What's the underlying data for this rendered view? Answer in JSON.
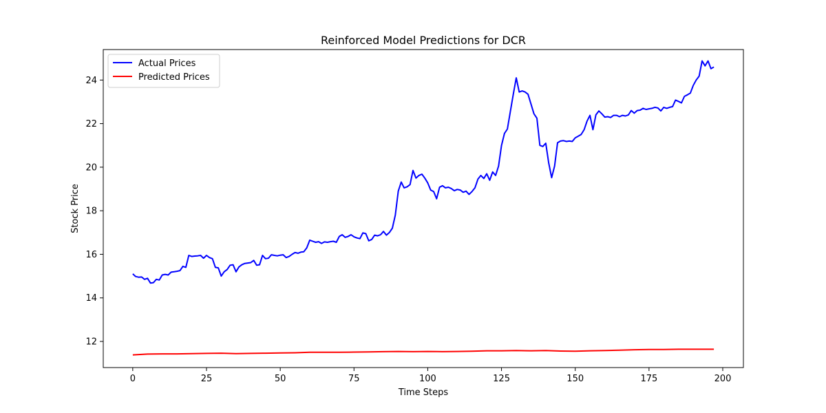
{
  "chart_data": {
    "type": "line",
    "title": "Reinforced Model Predictions for DCR",
    "xlabel": "Time Steps",
    "ylabel": "Stock Price",
    "xlim": [
      -10,
      207
    ],
    "ylim": [
      10.8,
      25.4
    ],
    "xticks": [
      0,
      25,
      50,
      75,
      100,
      125,
      150,
      175,
      200
    ],
    "yticks": [
      12,
      14,
      16,
      18,
      20,
      22,
      24
    ],
    "grid": false,
    "legend": "top-left",
    "series": [
      {
        "name": "Actual Prices",
        "color": "#0000ff",
        "points": [
          [
            0,
            15.1
          ],
          [
            1,
            14.98
          ],
          [
            2,
            14.95
          ],
          [
            3,
            14.96
          ],
          [
            4,
            14.85
          ],
          [
            5,
            14.9
          ],
          [
            6,
            14.68
          ],
          [
            7,
            14.7
          ],
          [
            8,
            14.85
          ],
          [
            9,
            14.82
          ],
          [
            10,
            15.05
          ],
          [
            11,
            15.08
          ],
          [
            12,
            15.05
          ],
          [
            13,
            15.18
          ],
          [
            14,
            15.2
          ],
          [
            15,
            15.22
          ],
          [
            16,
            15.25
          ],
          [
            17,
            15.45
          ],
          [
            18,
            15.4
          ],
          [
            19,
            15.95
          ],
          [
            20,
            15.9
          ],
          [
            21,
            15.92
          ],
          [
            22,
            15.93
          ],
          [
            23,
            15.95
          ],
          [
            24,
            15.82
          ],
          [
            25,
            15.95
          ],
          [
            26,
            15.85
          ],
          [
            27,
            15.8
          ],
          [
            28,
            15.4
          ],
          [
            29,
            15.38
          ],
          [
            30,
            15.0
          ],
          [
            31,
            15.2
          ],
          [
            32,
            15.3
          ],
          [
            33,
            15.5
          ],
          [
            34,
            15.52
          ],
          [
            35,
            15.2
          ],
          [
            36,
            15.42
          ],
          [
            37,
            15.52
          ],
          [
            38,
            15.58
          ],
          [
            39,
            15.6
          ],
          [
            40,
            15.62
          ],
          [
            41,
            15.72
          ],
          [
            42,
            15.5
          ],
          [
            43,
            15.52
          ],
          [
            44,
            15.95
          ],
          [
            45,
            15.8
          ],
          [
            46,
            15.82
          ],
          [
            47,
            15.98
          ],
          [
            48,
            15.95
          ],
          [
            49,
            15.93
          ],
          [
            50,
            15.96
          ],
          [
            51,
            15.98
          ],
          [
            52,
            15.85
          ],
          [
            53,
            15.9
          ],
          [
            54,
            16.0
          ],
          [
            55,
            16.08
          ],
          [
            56,
            16.05
          ],
          [
            57,
            16.1
          ],
          [
            58,
            16.12
          ],
          [
            59,
            16.3
          ],
          [
            60,
            16.65
          ],
          [
            61,
            16.6
          ],
          [
            62,
            16.55
          ],
          [
            63,
            16.58
          ],
          [
            64,
            16.5
          ],
          [
            65,
            16.57
          ],
          [
            66,
            16.55
          ],
          [
            67,
            16.58
          ],
          [
            68,
            16.6
          ],
          [
            69,
            16.55
          ],
          [
            70,
            16.82
          ],
          [
            71,
            16.9
          ],
          [
            72,
            16.78
          ],
          [
            73,
            16.82
          ],
          [
            74,
            16.9
          ],
          [
            75,
            16.8
          ],
          [
            76,
            16.75
          ],
          [
            77,
            16.72
          ],
          [
            78,
            16.98
          ],
          [
            79,
            16.95
          ],
          [
            80,
            16.62
          ],
          [
            81,
            16.68
          ],
          [
            82,
            16.88
          ],
          [
            83,
            16.85
          ],
          [
            84,
            16.9
          ],
          [
            85,
            17.05
          ],
          [
            86,
            16.88
          ],
          [
            87,
            17.0
          ],
          [
            88,
            17.2
          ],
          [
            89,
            17.8
          ],
          [
            90,
            18.9
          ],
          [
            91,
            19.32
          ],
          [
            92,
            19.05
          ],
          [
            93,
            19.1
          ],
          [
            94,
            19.2
          ],
          [
            95,
            19.85
          ],
          [
            96,
            19.5
          ],
          [
            97,
            19.62
          ],
          [
            98,
            19.68
          ],
          [
            99,
            19.5
          ],
          [
            100,
            19.28
          ],
          [
            101,
            18.95
          ],
          [
            102,
            18.88
          ],
          [
            103,
            18.55
          ],
          [
            104,
            19.08
          ],
          [
            105,
            19.15
          ],
          [
            106,
            19.05
          ],
          [
            107,
            19.08
          ],
          [
            108,
            19.02
          ],
          [
            109,
            18.92
          ],
          [
            110,
            18.98
          ],
          [
            111,
            18.95
          ],
          [
            112,
            18.85
          ],
          [
            113,
            18.9
          ],
          [
            114,
            18.75
          ],
          [
            115,
            18.88
          ],
          [
            116,
            19.05
          ],
          [
            117,
            19.45
          ],
          [
            118,
            19.62
          ],
          [
            119,
            19.48
          ],
          [
            120,
            19.7
          ],
          [
            121,
            19.4
          ],
          [
            122,
            19.78
          ],
          [
            123,
            19.62
          ],
          [
            124,
            20.05
          ],
          [
            125,
            21.0
          ],
          [
            126,
            21.55
          ],
          [
            127,
            21.75
          ],
          [
            128,
            22.55
          ],
          [
            129,
            23.35
          ],
          [
            130,
            24.1
          ],
          [
            131,
            23.45
          ],
          [
            132,
            23.5
          ],
          [
            133,
            23.45
          ],
          [
            134,
            23.35
          ],
          [
            135,
            22.9
          ],
          [
            136,
            22.45
          ],
          [
            137,
            22.25
          ],
          [
            138,
            21.0
          ],
          [
            139,
            20.95
          ],
          [
            140,
            21.1
          ],
          [
            141,
            20.2
          ],
          [
            142,
            19.52
          ],
          [
            143,
            20.05
          ],
          [
            144,
            21.12
          ],
          [
            145,
            21.2
          ],
          [
            146,
            21.22
          ],
          [
            147,
            21.18
          ],
          [
            148,
            21.2
          ],
          [
            149,
            21.18
          ],
          [
            150,
            21.35
          ],
          [
            151,
            21.42
          ],
          [
            152,
            21.5
          ],
          [
            153,
            21.72
          ],
          [
            154,
            22.12
          ],
          [
            155,
            22.38
          ],
          [
            156,
            21.72
          ],
          [
            157,
            22.4
          ],
          [
            158,
            22.58
          ],
          [
            159,
            22.45
          ],
          [
            160,
            22.3
          ],
          [
            161,
            22.32
          ],
          [
            162,
            22.28
          ],
          [
            163,
            22.38
          ],
          [
            164,
            22.38
          ],
          [
            165,
            22.32
          ],
          [
            166,
            22.38
          ],
          [
            167,
            22.35
          ],
          [
            168,
            22.4
          ],
          [
            169,
            22.6
          ],
          [
            170,
            22.48
          ],
          [
            171,
            22.6
          ],
          [
            172,
            22.62
          ],
          [
            173,
            22.7
          ],
          [
            174,
            22.65
          ],
          [
            175,
            22.68
          ],
          [
            176,
            22.7
          ],
          [
            177,
            22.75
          ],
          [
            178,
            22.72
          ],
          [
            179,
            22.58
          ],
          [
            180,
            22.75
          ],
          [
            181,
            22.7
          ],
          [
            182,
            22.75
          ],
          [
            183,
            22.78
          ],
          [
            184,
            23.08
          ],
          [
            185,
            23.02
          ],
          [
            186,
            22.95
          ],
          [
            187,
            23.25
          ],
          [
            188,
            23.32
          ],
          [
            189,
            23.4
          ],
          [
            190,
            23.75
          ],
          [
            191,
            24.0
          ],
          [
            192,
            24.18
          ],
          [
            193,
            24.88
          ],
          [
            194,
            24.65
          ],
          [
            195,
            24.88
          ],
          [
            196,
            24.52
          ],
          [
            197,
            24.6
          ]
        ]
      },
      {
        "name": "Predicted Prices",
        "color": "#ff0000",
        "points": [
          [
            0,
            11.38
          ],
          [
            5,
            11.42
          ],
          [
            10,
            11.43
          ],
          [
            15,
            11.43
          ],
          [
            20,
            11.44
          ],
          [
            25,
            11.45
          ],
          [
            30,
            11.46
          ],
          [
            35,
            11.44
          ],
          [
            40,
            11.45
          ],
          [
            45,
            11.46
          ],
          [
            50,
            11.47
          ],
          [
            55,
            11.48
          ],
          [
            60,
            11.5
          ],
          [
            65,
            11.5
          ],
          [
            70,
            11.5
          ],
          [
            75,
            11.51
          ],
          [
            80,
            11.52
          ],
          [
            85,
            11.53
          ],
          [
            90,
            11.54
          ],
          [
            95,
            11.53
          ],
          [
            100,
            11.54
          ],
          [
            105,
            11.53
          ],
          [
            110,
            11.54
          ],
          [
            115,
            11.55
          ],
          [
            120,
            11.57
          ],
          [
            125,
            11.57
          ],
          [
            130,
            11.58
          ],
          [
            135,
            11.57
          ],
          [
            140,
            11.58
          ],
          [
            145,
            11.56
          ],
          [
            150,
            11.55
          ],
          [
            155,
            11.57
          ],
          [
            160,
            11.58
          ],
          [
            165,
            11.6
          ],
          [
            170,
            11.62
          ],
          [
            175,
            11.63
          ],
          [
            180,
            11.63
          ],
          [
            185,
            11.64
          ],
          [
            190,
            11.64
          ],
          [
            197,
            11.64
          ]
        ]
      }
    ]
  }
}
